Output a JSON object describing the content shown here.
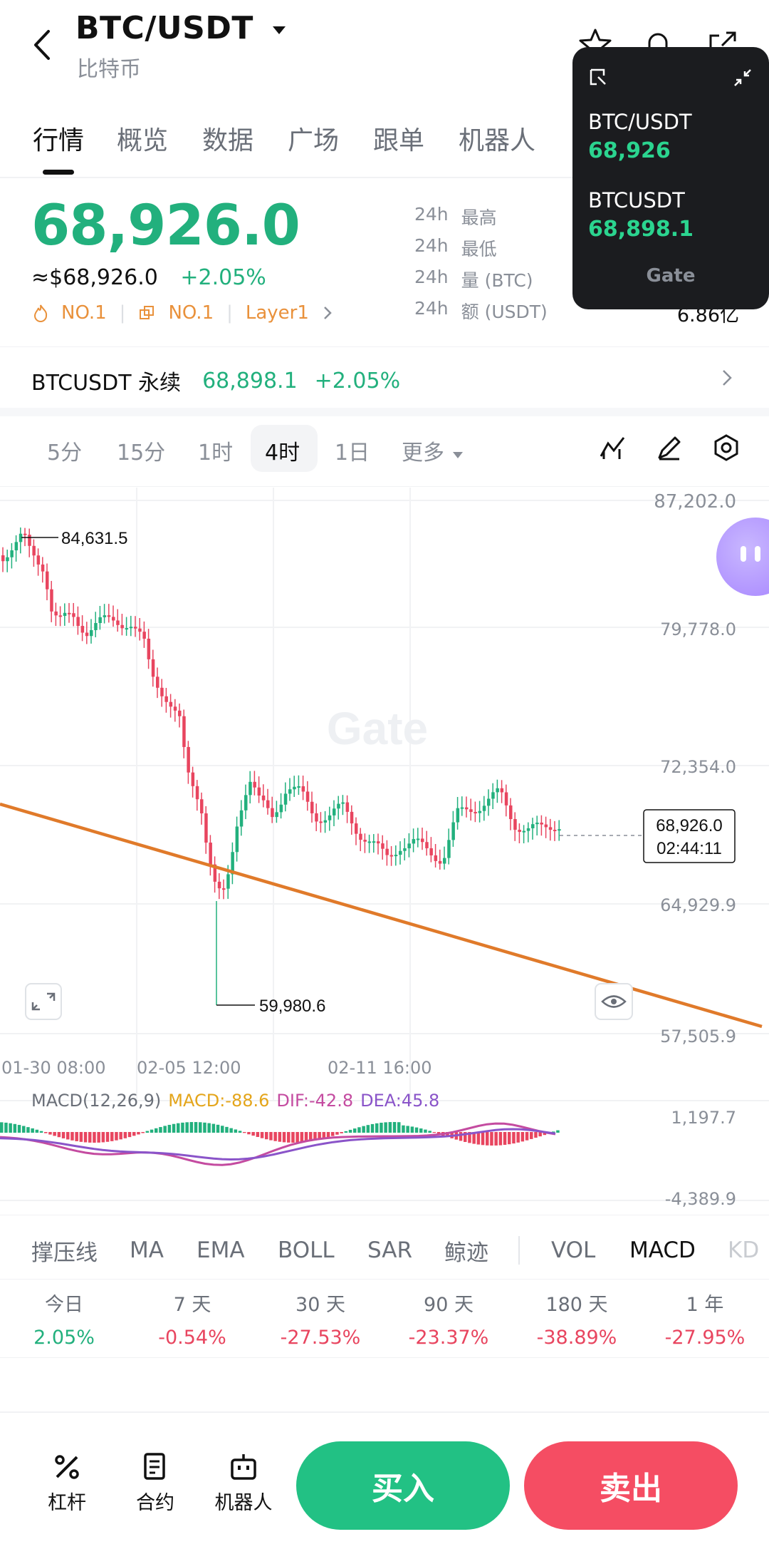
{
  "header": {
    "title": "BTC/USDT",
    "subtitle": "比特币"
  },
  "tabs": [
    "行情",
    "概览",
    "数据",
    "广场",
    "跟单",
    "机器人"
  ],
  "price": {
    "last": "68,926.0",
    "usd": "≈$68,926.0",
    "change": "+2.05%",
    "tags": [
      "NO.1",
      "NO.1",
      "Layer1"
    ]
  },
  "stats": [
    {
      "label_a": "24h",
      "label_b": "最高",
      "value": ""
    },
    {
      "label_a": "24h",
      "label_b": "最低",
      "value": ""
    },
    {
      "label_a": "24h",
      "label_b": "量 (BTC)",
      "value": ""
    },
    {
      "label_a": "24h",
      "label_b": "额 (USDT)",
      "value": "6.86亿"
    }
  ],
  "perpetual": {
    "name": "BTCUSDT 永续",
    "price": "68,898.1",
    "change": "+2.05%"
  },
  "timeframes": [
    "5分",
    "15分",
    "1时",
    "4时",
    "1日",
    "更多"
  ],
  "popup": {
    "pair1": "BTC/USDT",
    "price1": "68,926",
    "pair2": "BTCUSDT",
    "price2": "68,898.1",
    "brand": "Gate"
  },
  "chart_data": {
    "type": "candlestick",
    "y_ticks": [
      "87,202.0",
      "79,778.0",
      "72,354.0",
      "64,929.9",
      "57,505.9"
    ],
    "x_ticks": [
      "01-30 08:00",
      "02-05 12:00",
      "02-11 16:00"
    ],
    "high_marker": "84,631.5",
    "low_marker": "59,980.6",
    "last_price": "68,926.0",
    "countdown": "02:44:11",
    "watermark": "Gate",
    "macd": {
      "label": "MACD(12,26,9)",
      "macd": "MACD:-88.6",
      "dif": "DIF:-42.8",
      "dea": "DEA:45.8",
      "top": "1,197.7",
      "bottom": "-4,389.9"
    }
  },
  "indicators": [
    "撑压线",
    "MA",
    "EMA",
    "BOLL",
    "SAR",
    "鲸迹",
    "VOL",
    "MACD",
    "KD"
  ],
  "returns": [
    {
      "label": "今日",
      "value": "2.05%",
      "up": true
    },
    {
      "label": "7 天",
      "value": "-0.54%",
      "up": false
    },
    {
      "label": "30 天",
      "value": "-27.53%",
      "up": false
    },
    {
      "label": "90 天",
      "value": "-23.37%",
      "up": false
    },
    {
      "label": "180 天",
      "value": "-38.89%",
      "up": false
    },
    {
      "label": "1 年",
      "value": "-27.95%",
      "up": false
    }
  ],
  "bottom": {
    "leverage": "杠杆",
    "contract": "合约",
    "bot": "机器人",
    "buy": "买入",
    "sell": "卖出"
  },
  "colors": {
    "up": "#22b07d",
    "down": "#e8455f",
    "trendline": "#e07a2a",
    "macd_dif": "#c44ba0",
    "macd_dea": "#8a54c9"
  }
}
